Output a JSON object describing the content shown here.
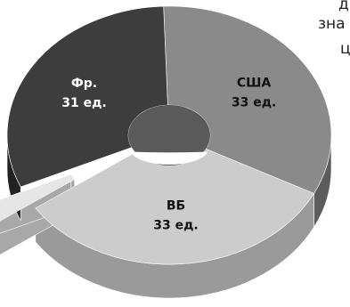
{
  "clipped_text": [
    "д",
    "зна",
    "ц"
  ],
  "chart_data": {
    "type": "pie",
    "style": "3d-doughnut-exploded",
    "slices": [
      {
        "name": "США",
        "value": 33,
        "value_label": "33 ед.",
        "color": "#8a8a8a",
        "side_color": "#5c5c5c"
      },
      {
        "name": "ВБ",
        "value": 33,
        "value_label": "33 ед.",
        "color": "#cccccc",
        "side_color": "#9a9a9a"
      },
      {
        "name": "",
        "value": 3,
        "value_label": "",
        "color": "#e6e6e6",
        "side_color": "#a8a8a8",
        "exploded": true
      },
      {
        "name": "Фр.",
        "value": 31,
        "value_label": "31 ед.",
        "color": "#3d3d3d",
        "side_color": "#222222"
      }
    ]
  }
}
